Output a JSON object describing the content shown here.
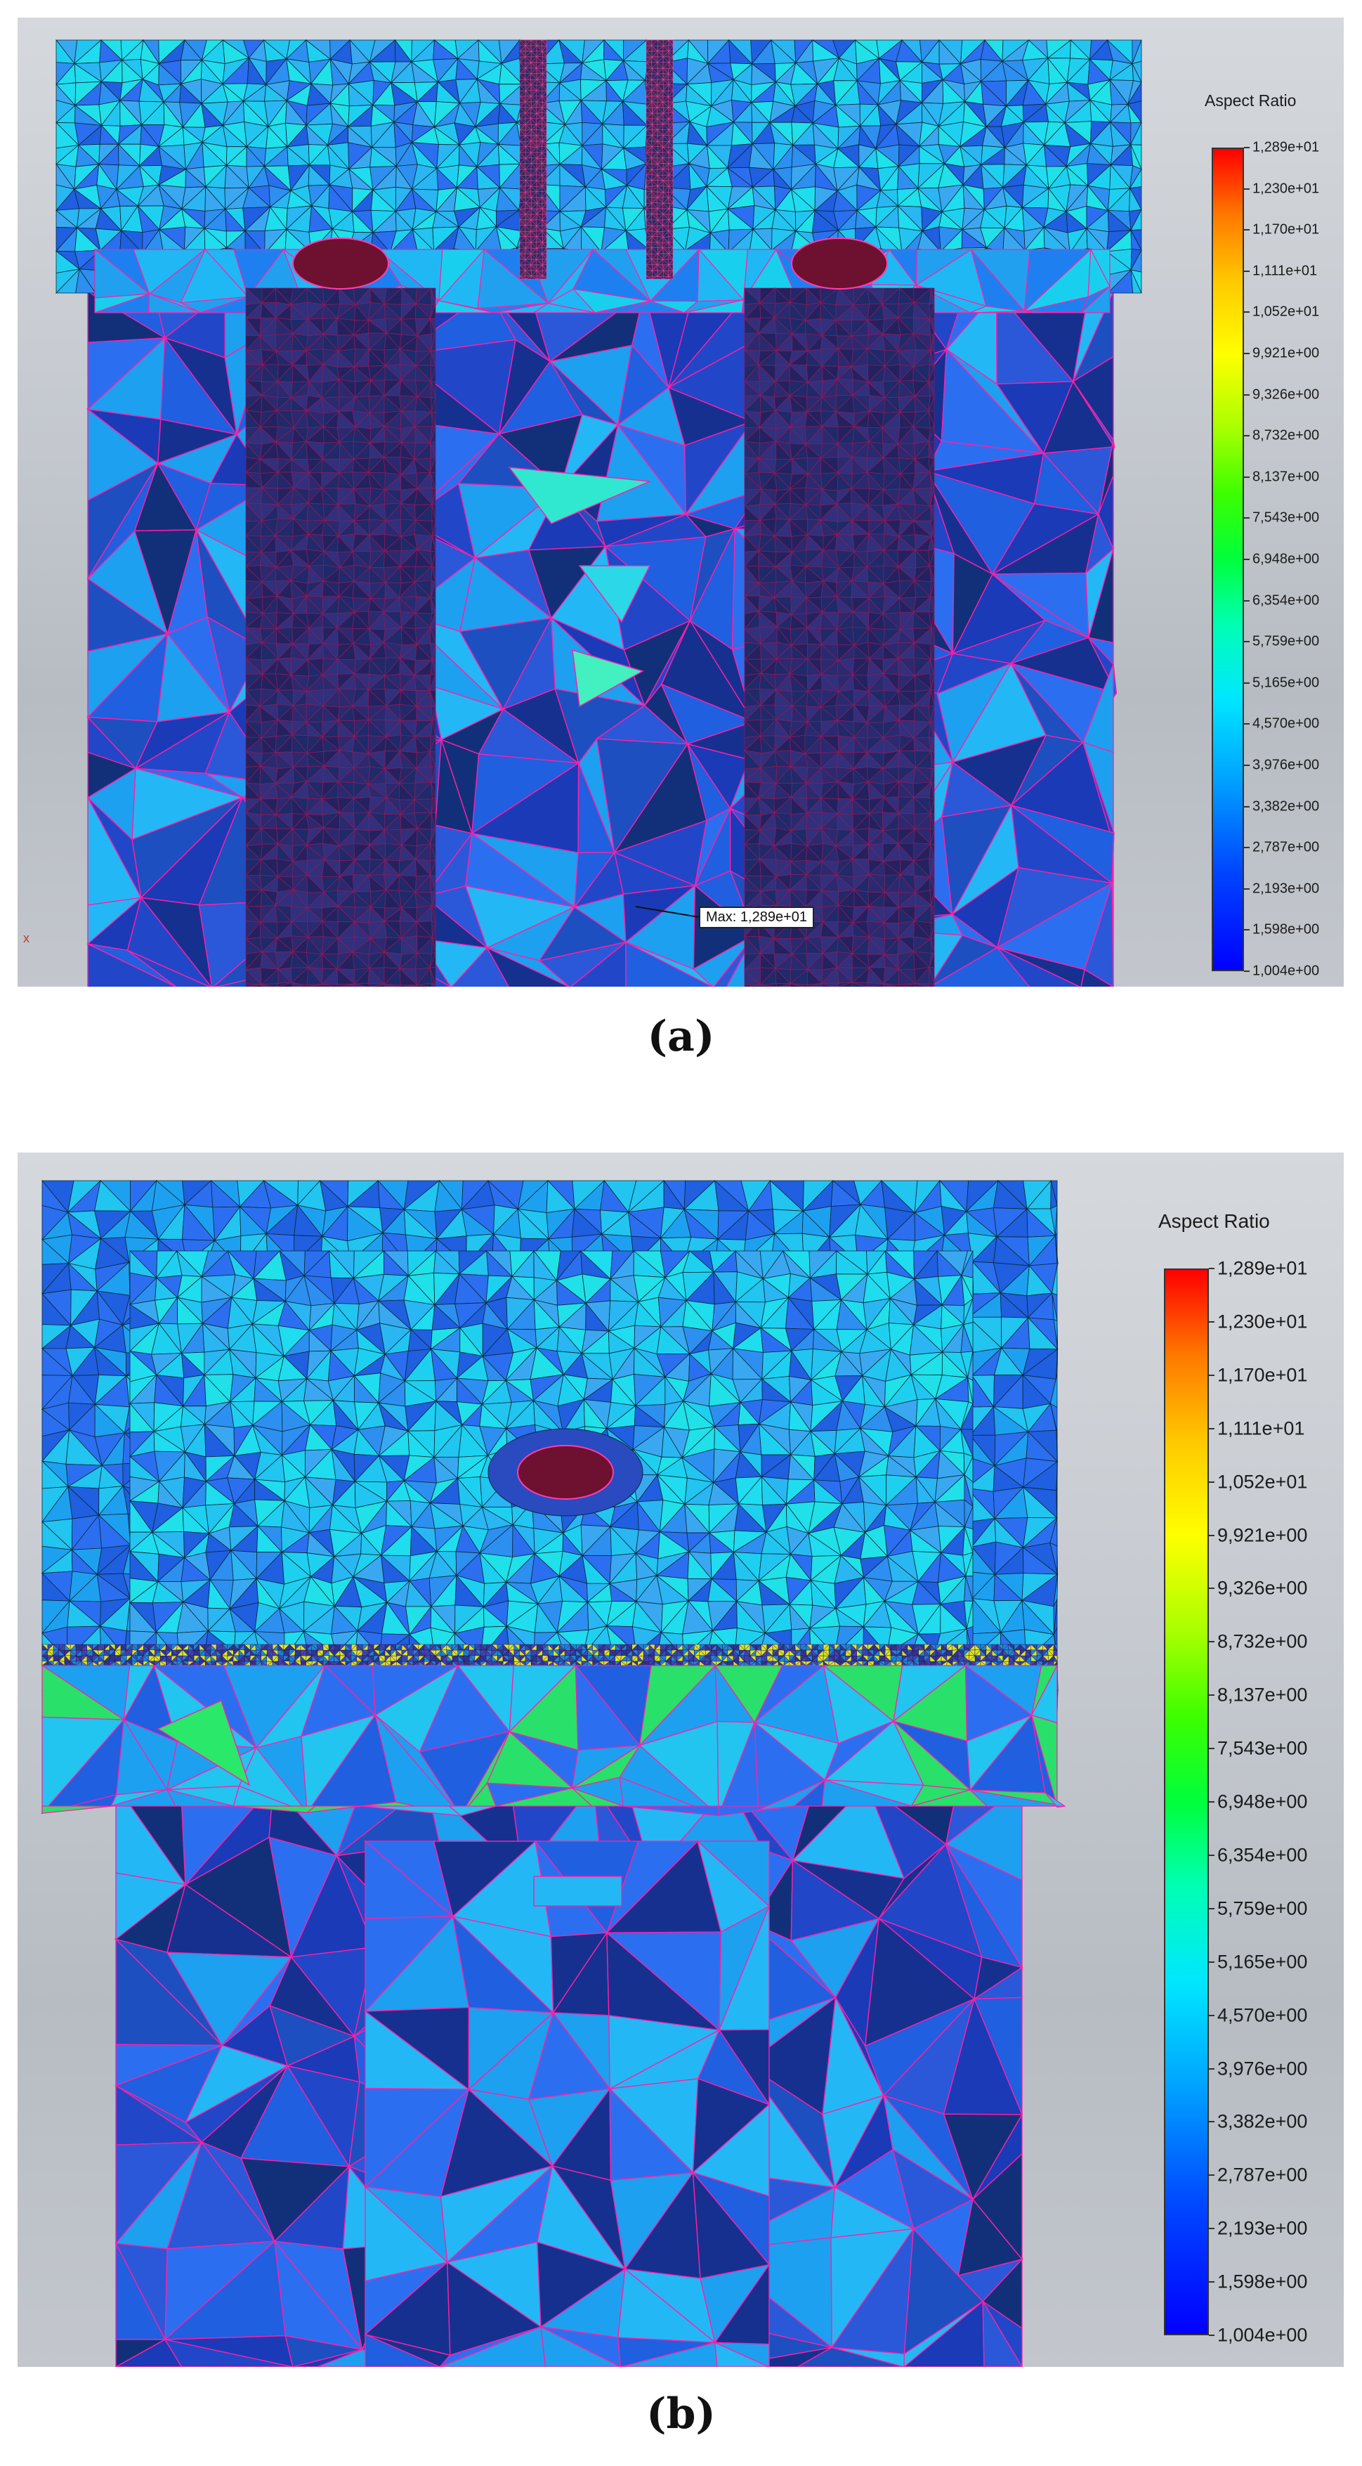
{
  "panels": [
    {
      "id": "a",
      "caption": "(a)",
      "legend_title": "Aspect Ratio",
      "ticks": [
        "1,289e+01",
        "1,230e+01",
        "1,170e+01",
        "1,111e+01",
        "1,052e+01",
        "9,921e+00",
        "9,326e+00",
        "8,732e+00",
        "8,137e+00",
        "7,543e+00",
        "6,948e+00",
        "6,354e+00",
        "5,759e+00",
        "5,165e+00",
        "4,570e+00",
        "3,976e+00",
        "3,382e+00",
        "2,787e+00",
        "2,193e+00",
        "1,598e+00",
        "1,004e+00"
      ],
      "max_label": "Max: 1,289e+01",
      "axis_label": "x"
    },
    {
      "id": "b",
      "caption": "(b)",
      "legend_title": "Aspect Ratio",
      "ticks": [
        "1,289e+01",
        "1,230e+01",
        "1,170e+01",
        "1,111e+01",
        "1,052e+01",
        "9,921e+00",
        "9,326e+00",
        "8,732e+00",
        "8,137e+00",
        "7,543e+00",
        "6,948e+00",
        "6,354e+00",
        "5,759e+00",
        "5,165e+00",
        "4,570e+00",
        "3,976e+00",
        "3,382e+00",
        "2,787e+00",
        "2,193e+00",
        "1,598e+00",
        "1,004e+00"
      ]
    }
  ],
  "colors": {
    "mesh_edge_fine": "#0a2a3a",
    "mesh_edge_coarse": "#ff1fa8",
    "cyan": "#1ed0f0",
    "blue": "#1f5fe0",
    "deep_blue": "#1a3ab8",
    "dark_red": "#6e1030"
  },
  "icons": [
    "mesh-plot",
    "color-legend"
  ]
}
